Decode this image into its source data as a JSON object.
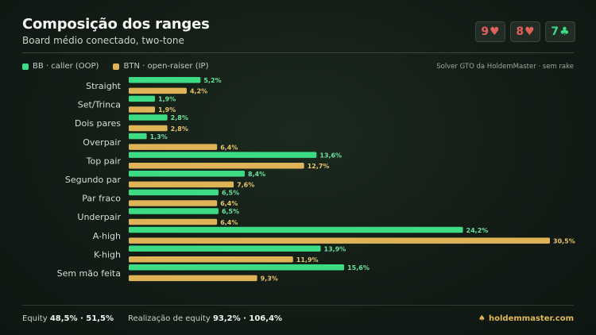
{
  "header": {
    "title": "Composição dos ranges",
    "subtitle": "Board médio conectado, two-tone"
  },
  "board": [
    {
      "rank": "9",
      "suit": "♥",
      "color": "#e0605a"
    },
    {
      "rank": "8",
      "suit": "♥",
      "color": "#e0605a"
    },
    {
      "rank": "7",
      "suit": "♣",
      "color": "#3ddc84"
    }
  ],
  "legend": {
    "bb": "BB · caller (OOP)",
    "btn": "BTN · open-raiser (IP)"
  },
  "source": "Solver GTO da HoldemMaster · sem rake",
  "colors": {
    "bb": "#3ddc84",
    "btn": "#dfb459",
    "bb_label": "#6ee39f",
    "btn_label": "#e8c46c",
    "brand": "#e2b95a"
  },
  "chart_data": {
    "type": "bar",
    "orientation": "horizontal",
    "categories": [
      "Straight",
      "Set/Trinca",
      "Dois pares",
      "Overpair",
      "Top pair",
      "Segundo par",
      "Par fraco",
      "Underpair",
      "A-high",
      "K-high",
      "Sem mão feita"
    ],
    "series": [
      {
        "name": "BB · caller (OOP)",
        "values": [
          5.2,
          1.9,
          2.8,
          1.3,
          13.6,
          8.4,
          6.5,
          6.5,
          24.2,
          13.9,
          15.6
        ],
        "labels": [
          "5,2%",
          "1,9%",
          "2,8%",
          "1,3%",
          "13,6%",
          "8,4%",
          "6,5%",
          "6,5%",
          "24,2%",
          "13,9%",
          "15,6%"
        ]
      },
      {
        "name": "BTN · open-raiser (IP)",
        "values": [
          4.2,
          1.9,
          2.8,
          6.4,
          12.7,
          7.6,
          6.4,
          6.4,
          30.5,
          11.9,
          9.3
        ],
        "labels": [
          "4,2%",
          "1,9%",
          "2,8%",
          "6,4%",
          "12,7%",
          "7,6%",
          "6,4%",
          "6,4%",
          "30,5%",
          "11,9%",
          "9,3%"
        ]
      }
    ],
    "grid": false,
    "legend_position": "top-left"
  },
  "footer": {
    "equity_label": "Equity",
    "equity_values": "48,5% · 51,5%",
    "realization_label": "Realização de equity",
    "realization_values": "93,2% · 106,4%",
    "brand": "holdemmaster.com",
    "brand_icon": "spade-icon"
  }
}
